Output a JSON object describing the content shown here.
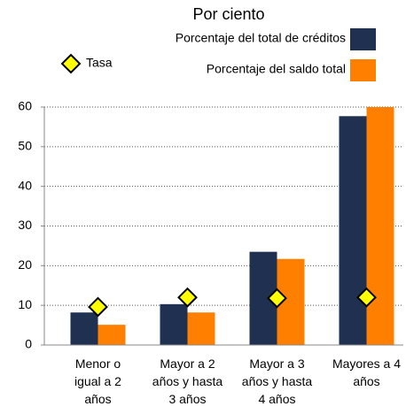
{
  "chart_data": {
    "type": "bar",
    "title": "Por ciento",
    "categories": [
      "Menor o igual a 2 años",
      "Mayor a 2 años y hasta 3 años",
      "Mayor a 3 años y hasta 4 años",
      "Mayores a 4 años"
    ],
    "series": [
      {
        "name": "Porcentaje del total de créditos",
        "color": "#1f3050",
        "style": "bar",
        "values": [
          8.2,
          10.3,
          23.5,
          57.7
        ]
      },
      {
        "name": "Porcentaje del saldo total",
        "color": "#ff8000",
        "style": "bar",
        "values": [
          5.1,
          8.2,
          21.7,
          60
        ]
      },
      {
        "name": "Tasa",
        "color": "#ffff00",
        "style": "diamond",
        "values": [
          9.6,
          12.0,
          11.8,
          12.0
        ]
      }
    ],
    "ylim": [
      0,
      60
    ],
    "yticks": [
      0,
      10,
      20,
      30,
      40,
      50,
      60
    ],
    "grid": true
  }
}
